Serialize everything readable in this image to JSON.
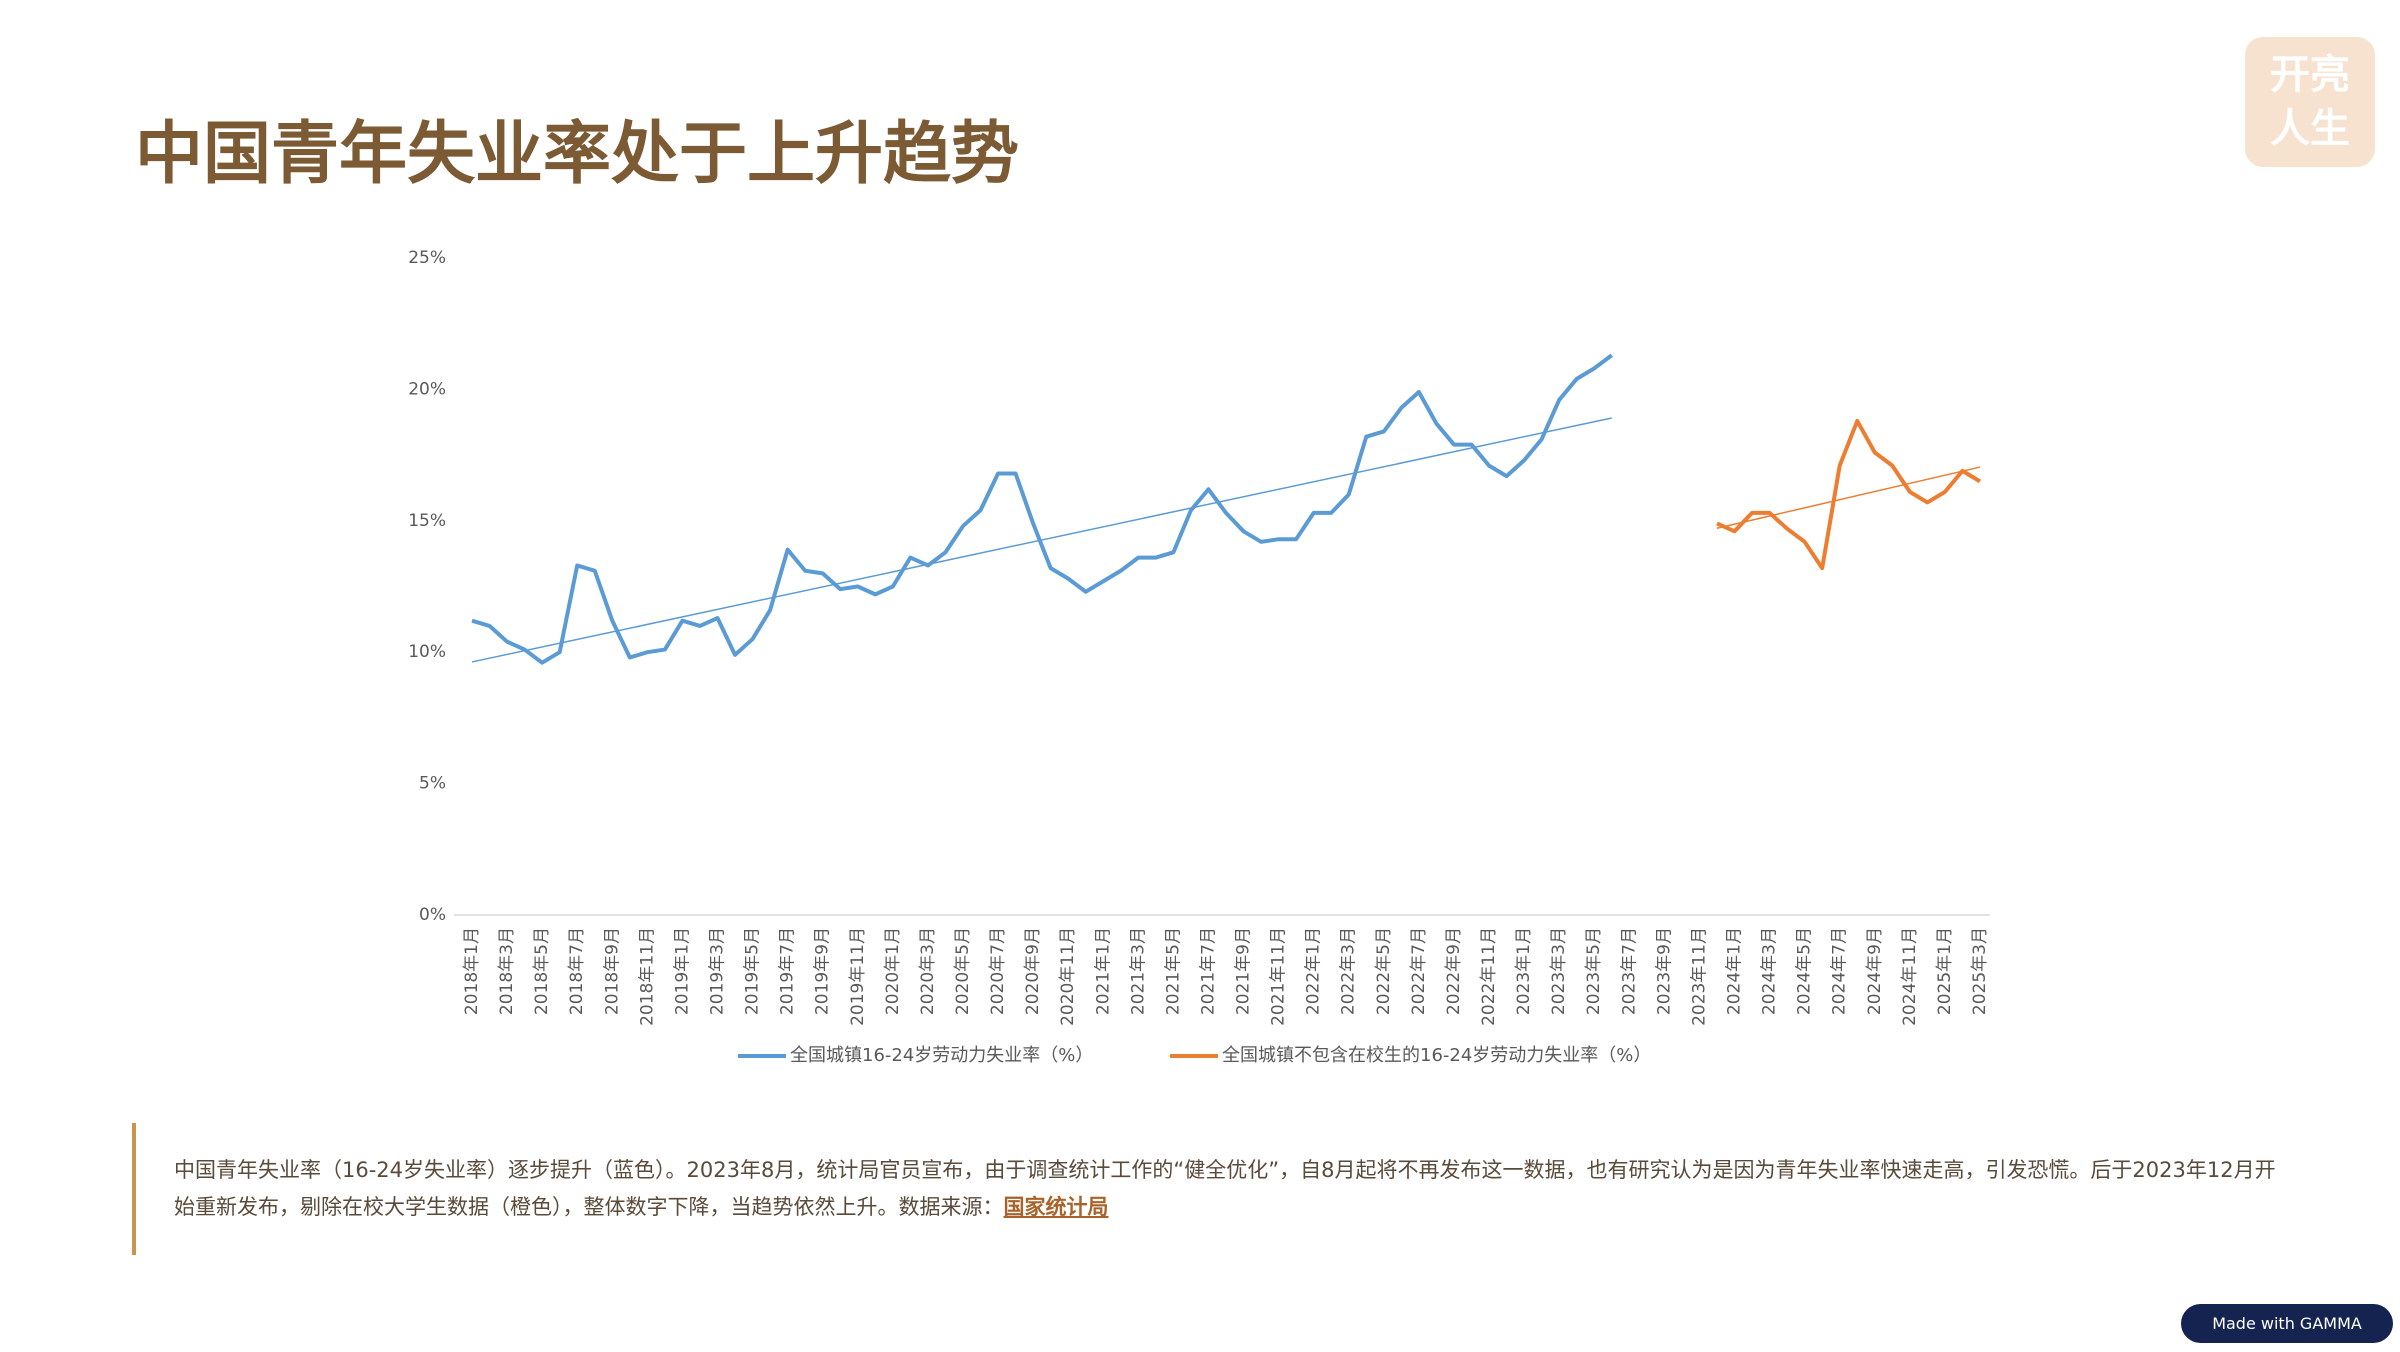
{
  "title": "中国青年失业率处于上升趋势",
  "logo": [
    "开亮",
    "人生"
  ],
  "chart_data": {
    "type": "line",
    "categories": [
      "2018年1月",
      null,
      "2018年3月",
      null,
      "2018年5月",
      null,
      "2018年7月",
      null,
      "2018年9月",
      null,
      "2018年11月",
      null,
      "2019年1月",
      null,
      "2019年3月",
      null,
      "2019年5月",
      null,
      "2019年7月",
      null,
      "2019年9月",
      null,
      "2019年11月",
      null,
      "2020年1月",
      null,
      "2020年3月",
      null,
      "2020年5月",
      null,
      "2020年7月",
      null,
      "2020年9月",
      null,
      "2020年11月",
      null,
      "2021年1月",
      null,
      "2021年3月",
      null,
      "2021年5月",
      null,
      "2021年7月",
      null,
      "2021年9月",
      null,
      "2021年11月",
      null,
      "2022年1月",
      null,
      "2022年3月",
      null,
      "2022年5月",
      null,
      "2022年7月",
      null,
      "2022年9月",
      null,
      "2022年11月",
      null,
      "2023年1月",
      null,
      "2023年3月",
      null,
      "2023年5月",
      null,
      "2023年7月",
      null,
      "2023年9月",
      null,
      "2023年11月",
      null,
      "2024年1月",
      null,
      "2024年3月",
      null,
      "2024年5月",
      null,
      "2024年7月",
      null,
      "2024年9月",
      null,
      "2024年11月",
      null,
      "2025年1月",
      null,
      "2025年3月"
    ],
    "series": [
      {
        "name": "全国城镇16-24岁劳动力失业率（%）",
        "color": "#5b9bd5",
        "trendline": true,
        "values": [
          11.2,
          11.0,
          10.4,
          10.1,
          9.6,
          10.0,
          13.3,
          13.1,
          11.2,
          9.8,
          10.0,
          10.1,
          11.2,
          11.0,
          11.3,
          9.9,
          10.5,
          11.6,
          13.9,
          13.1,
          13.0,
          12.4,
          12.5,
          12.2,
          12.5,
          13.6,
          13.3,
          13.8,
          14.8,
          15.4,
          16.8,
          16.8,
          14.9,
          13.2,
          12.8,
          12.3,
          12.7,
          13.1,
          13.6,
          13.6,
          13.8,
          15.4,
          16.2,
          15.3,
          14.6,
          14.2,
          14.3,
          14.3,
          15.3,
          15.3,
          16.0,
          18.2,
          18.4,
          19.3,
          19.9,
          18.7,
          17.9,
          17.9,
          17.1,
          16.7,
          17.3,
          18.1,
          19.6,
          20.4,
          20.8,
          21.3,
          null,
          null,
          null,
          null,
          null,
          null,
          null,
          null,
          null,
          null,
          null,
          null,
          null,
          null,
          null,
          null,
          null,
          null,
          null,
          null,
          null
        ]
      },
      {
        "name": "全国城镇不包含在校生的16-24岁劳动力失业率（%）",
        "color": "#ed7d31",
        "trendline": true,
        "values": [
          null,
          null,
          null,
          null,
          null,
          null,
          null,
          null,
          null,
          null,
          null,
          null,
          null,
          null,
          null,
          null,
          null,
          null,
          null,
          null,
          null,
          null,
          null,
          null,
          null,
          null,
          null,
          null,
          null,
          null,
          null,
          null,
          null,
          null,
          null,
          null,
          null,
          null,
          null,
          null,
          null,
          null,
          null,
          null,
          null,
          null,
          null,
          null,
          null,
          null,
          null,
          null,
          null,
          null,
          null,
          null,
          null,
          null,
          null,
          null,
          null,
          null,
          null,
          null,
          null,
          null,
          null,
          null,
          null,
          null,
          null,
          14.9,
          14.6,
          15.3,
          15.3,
          14.7,
          14.2,
          13.2,
          17.1,
          18.8,
          17.6,
          17.1,
          16.1,
          15.7,
          16.1,
          16.9,
          16.5
        ]
      }
    ],
    "ylim": [
      0,
      25
    ],
    "yticks": [
      {
        "value": 0,
        "label": "0%"
      },
      {
        "value": 5,
        "label": "5%"
      },
      {
        "value": 10,
        "label": "10%"
      },
      {
        "value": 15,
        "label": "15%"
      },
      {
        "value": 20,
        "label": "20%"
      },
      {
        "value": 25,
        "label": "25%"
      }
    ],
    "grid": false,
    "legend": "bottom"
  },
  "note": {
    "text": "中国青年失业率（16-24岁失业率）逐步提升（蓝色）。2023年8月，统计局官员宣布，由于调查统计工作的“健全优化”，自8月起将不再发布这一数据，也有研究认为是因为青年失业率快速走高，引发恐慌。后于2023年12月开始重新发布，剔除在校大学生数据（橙色），整体数字下降，当趋势依然上升。数据来源：",
    "link": "国家统计局"
  },
  "badge": "Made with GAMMA"
}
